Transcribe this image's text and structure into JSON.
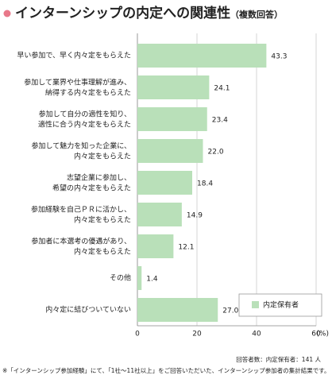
{
  "chart_data": {
    "type": "barh",
    "title": "インターンシップの内定への関連性",
    "subtitle": "（複数回答）",
    "categories": [
      "早い参加で、早く内々定をもらえた",
      "参加して業界や仕事理解が進み、\n納得する内々定をもらえた",
      "参加して自分の適性を知り、\n適性に合う内々定をもらえた",
      "参加して魅力を知った企業に、\n内々定をもらえた",
      "志望企業に参加し、\n希望の内々定をもらえた",
      "参加経験を自己ＰＲに活かし、\n内々定をもらえた",
      "参加者に本選考の優遇があり、\n内々定をもらえた",
      "その他",
      "内々定に結びついていない"
    ],
    "series": [
      {
        "name": "内定保有者",
        "color": "#b9e0b9",
        "values": [
          43.3,
          24.1,
          23.4,
          22.0,
          18.4,
          14.9,
          12.1,
          1.4,
          27.0
        ],
        "value_labels": [
          "43.3",
          "24.1",
          "23.4",
          "22.0",
          "18.4",
          "14.9",
          "12.1",
          "1.4",
          "27.0"
        ]
      }
    ],
    "xlim": [
      0,
      60
    ],
    "xticks": [
      0,
      20,
      40,
      60
    ],
    "x_label": "(%)",
    "grid": true,
    "legend": "bottom-right",
    "notes": [
      "回答者数：内定保有者：141 人",
      "※「インターンシップ参加経験」にて、「1社～11社以上」をご回答いただいた、インターンシップ参加者の集計結果です。"
    ]
  }
}
